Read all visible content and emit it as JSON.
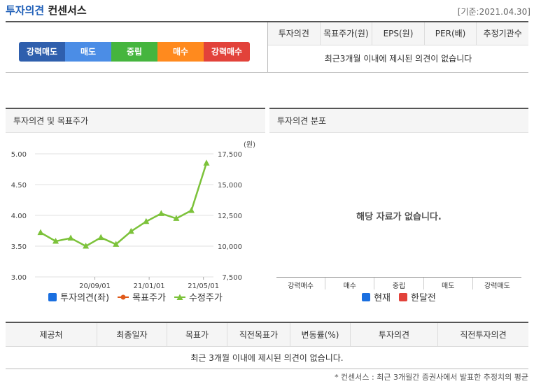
{
  "header": {
    "title_part1": "투자의견",
    "title_part2": "컨센서스",
    "date": "[기준:2021.04.30]"
  },
  "opinion_scale": [
    {
      "label": "강력매도",
      "color": "#2f5fad"
    },
    {
      "label": "매도",
      "color": "#4b8de6"
    },
    {
      "label": "중립",
      "color": "#45b53e"
    },
    {
      "label": "매수",
      "color": "#ff8a1e"
    },
    {
      "label": "강력매수",
      "color": "#e2423a"
    }
  ],
  "opinion_table": {
    "headers": [
      "투자의견",
      "목표주가(원)",
      "EPS(원)",
      "PER(배)",
      "추정기관수"
    ],
    "empty_message": "최근3개월 이내에 제시된 의견이 없습니다"
  },
  "chart_panel": {
    "title": "투자의견 및 목표주가",
    "legend": [
      {
        "name": "투자의견(좌)",
        "color": "#1a6fe0",
        "marker": "square"
      },
      {
        "name": "목표주가",
        "color": "#e05a1a",
        "marker": "circle-line"
      },
      {
        "name": "수정주가",
        "color": "#7cc23a",
        "marker": "triangle-line"
      }
    ]
  },
  "chart_data": {
    "type": "line",
    "y_left": {
      "ticks": [
        "5.00",
        "4.50",
        "4.00",
        "3.50",
        "3.00"
      ],
      "range": [
        3.0,
        5.0
      ]
    },
    "y_right": {
      "ticks": [
        "17,500",
        "15,000",
        "12,500",
        "10,000",
        "7,500"
      ],
      "range": [
        7500,
        17500
      ],
      "unit": "(원)"
    },
    "x_ticks": [
      {
        "label": "20/09/01",
        "index": 3.6
      },
      {
        "label": "21/01/01",
        "index": 7.2
      },
      {
        "label": "21/05/01",
        "index": 10.8
      }
    ],
    "series": [
      {
        "name": "수정주가",
        "axis": "right",
        "color": "#7cc23a",
        "values": [
          11100,
          10400,
          10650,
          10000,
          10700,
          10150,
          11200,
          12000,
          12650,
          12250,
          12900,
          16750
        ]
      }
    ]
  },
  "dist_panel": {
    "title": "투자의견 분포",
    "empty_message": "해당 자료가 없습니다.",
    "categories": [
      "강력매수",
      "매수",
      "중립",
      "매도",
      "강력매도"
    ],
    "legend": [
      {
        "name": "현재",
        "color": "#1a6fe0"
      },
      {
        "name": "한달전",
        "color": "#e2423a"
      }
    ]
  },
  "bottom_table": {
    "headers": [
      "제공처",
      "최종일자",
      "목표가",
      "직전목표가",
      "변동률(%)",
      "투자의견",
      "직전투자의견"
    ],
    "empty_message": "최근 3개월 이내에 제시된 의견이 없습니다."
  },
  "footnote": "* 컨센서스 : 최근 3개월간 증권사에서 발표한 추정치의 평균"
}
